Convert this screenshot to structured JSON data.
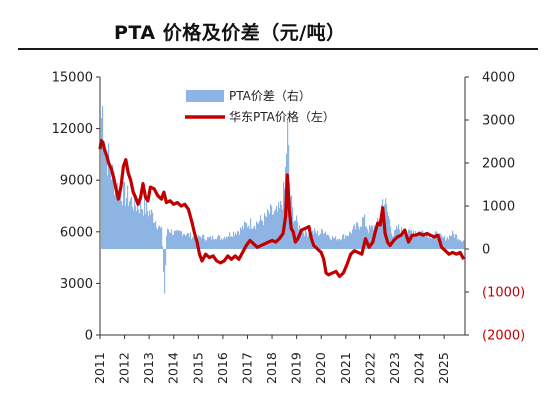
{
  "header": {
    "title": "PTA 价格及价差（元/吨）"
  },
  "chart_data": {
    "type": "line+area",
    "title": "PTA 价格及价差（元/吨）",
    "left_axis": {
      "min": 0,
      "max": 15000,
      "ticks": [
        "0",
        "3000",
        "6000",
        "9000",
        "12000",
        "15000"
      ]
    },
    "right_axis": {
      "min": -2000,
      "max": 4000,
      "ticks": [
        "(2000)",
        "(1000)",
        "0",
        "1000",
        "2000",
        "3000",
        "4000"
      ]
    },
    "x_ticks": [
      "2011",
      "2012",
      "2013",
      "2014",
      "2015",
      "2016",
      "2017",
      "2018",
      "2019",
      "2020",
      "2021",
      "2022",
      "2023",
      "2024",
      "2025"
    ],
    "legend_position": "top-center",
    "series": [
      {
        "name": "PTA价差（右）",
        "axis": "right",
        "type": "area",
        "color": "#8eb4e3",
        "x": [
          2011.0,
          2011.1,
          2011.2,
          2011.35,
          2011.5,
          2011.7,
          2011.9,
          2012.1,
          2012.3,
          2012.5,
          2012.7,
          2012.9,
          2013.1,
          2013.3,
          2013.5,
          2013.6,
          2013.7,
          2013.9,
          2014.1,
          2014.3,
          2014.5,
          2014.7,
          2014.9,
          2015.1,
          2015.3,
          2015.5,
          2015.7,
          2015.9,
          2016.1,
          2016.3,
          2016.5,
          2016.7,
          2016.9,
          2017.1,
          2017.3,
          2017.5,
          2017.7,
          2017.9,
          2018.1,
          2018.3,
          2018.5,
          2018.6,
          2018.7,
          2018.8,
          2018.9,
          2019.1,
          2019.3,
          2019.5,
          2019.7,
          2019.9,
          2020.1,
          2020.3,
          2020.5,
          2020.7,
          2020.9,
          2021.1,
          2021.3,
          2021.5,
          2021.7,
          2021.9,
          2022.1,
          2022.3,
          2022.5,
          2022.7,
          2022.9,
          2023.1,
          2023.3,
          2023.5,
          2023.7,
          2023.9,
          2024.1,
          2024.3,
          2024.5,
          2024.7,
          2024.9,
          2025.1,
          2025.3,
          2025.5,
          2025.7
        ],
        "values": [
          2900,
          3300,
          2400,
          2000,
          1700,
          1400,
          1300,
          1200,
          1100,
          1000,
          1000,
          900,
          800,
          600,
          400,
          -1100,
          500,
          400,
          350,
          400,
          350,
          300,
          250,
          300,
          250,
          250,
          300,
          250,
          300,
          350,
          400,
          450,
          550,
          600,
          600,
          650,
          700,
          850,
          800,
          900,
          1400,
          2800,
          1400,
          900,
          700,
          500,
          400,
          350,
          400,
          350,
          450,
          300,
          250,
          250,
          300,
          350,
          450,
          550,
          700,
          450,
          500,
          600,
          1200,
          800,
          300,
          500,
          400,
          350,
          450,
          400,
          400,
          350,
          300,
          350,
          250,
          250,
          350,
          300,
          200
        ]
      },
      {
        "name": "华东PTA价格（左）",
        "axis": "left",
        "type": "line",
        "color": "#c00000",
        "x": [
          2011.0,
          2011.05,
          2011.12,
          2011.2,
          2011.28,
          2011.35,
          2011.45,
          2011.55,
          2011.65,
          2011.75,
          2011.85,
          2011.95,
          2012.05,
          2012.15,
          2012.25,
          2012.35,
          2012.45,
          2012.55,
          2012.65,
          2012.75,
          2012.85,
          2012.95,
          2013.05,
          2013.2,
          2013.35,
          2013.5,
          2013.6,
          2013.7,
          2013.85,
          2014.0,
          2014.15,
          2014.3,
          2014.45,
          2014.6,
          2014.75,
          2014.85,
          2014.95,
          2015.05,
          2015.15,
          2015.3,
          2015.45,
          2015.6,
          2015.75,
          2015.9,
          2016.05,
          2016.2,
          2016.35,
          2016.5,
          2016.65,
          2016.8,
          2016.95,
          2017.1,
          2017.25,
          2017.4,
          2017.55,
          2017.7,
          2017.85,
          2018.0,
          2018.15,
          2018.3,
          2018.45,
          2018.55,
          2018.62,
          2018.7,
          2018.78,
          2018.86,
          2018.95,
          2019.05,
          2019.2,
          2019.35,
          2019.5,
          2019.6,
          2019.7,
          2019.85,
          2020.0,
          2020.1,
          2020.2,
          2020.3,
          2020.45,
          2020.6,
          2020.75,
          2020.9,
          2021.05,
          2021.2,
          2021.35,
          2021.5,
          2021.65,
          2021.8,
          2021.95,
          2022.1,
          2022.2,
          2022.3,
          2022.4,
          2022.5,
          2022.6,
          2022.7,
          2022.8,
          2022.95,
          2023.1,
          2023.25,
          2023.4,
          2023.55,
          2023.7,
          2023.85,
          2024.0,
          2024.15,
          2024.3,
          2024.45,
          2024.6,
          2024.75,
          2024.9,
          2025.05,
          2025.2,
          2025.35,
          2025.5,
          2025.65,
          2025.8
        ],
        "values": [
          10800,
          11300,
          11200,
          10700,
          10400,
          10000,
          9700,
          9200,
          8500,
          7900,
          8600,
          9800,
          10200,
          9400,
          9000,
          8300,
          8000,
          7600,
          8000,
          8800,
          8000,
          7800,
          8600,
          8500,
          8100,
          7900,
          8300,
          7700,
          7800,
          7600,
          7700,
          7500,
          7600,
          7300,
          6500,
          5900,
          5400,
          4700,
          4300,
          4700,
          4500,
          4600,
          4300,
          4200,
          4300,
          4600,
          4400,
          4600,
          4400,
          4800,
          5200,
          5500,
          5300,
          5100,
          5200,
          5300,
          5400,
          5500,
          5400,
          5600,
          5900,
          6900,
          9300,
          7300,
          6200,
          6000,
          5400,
          5600,
          6100,
          6200,
          6300,
          5600,
          5200,
          5000,
          4800,
          4400,
          3600,
          3500,
          3600,
          3700,
          3400,
          3600,
          4100,
          4700,
          4900,
          4800,
          4700,
          5600,
          5100,
          5400,
          6000,
          6500,
          6400,
          7400,
          5900,
          5400,
          5200,
          5500,
          5700,
          5800,
          6100,
          5400,
          5800,
          5800,
          5900,
          5800,
          5900,
          5800,
          5700,
          5800,
          5100,
          4900,
          4700,
          4800,
          4700,
          4800,
          4400
        ]
      }
    ]
  }
}
